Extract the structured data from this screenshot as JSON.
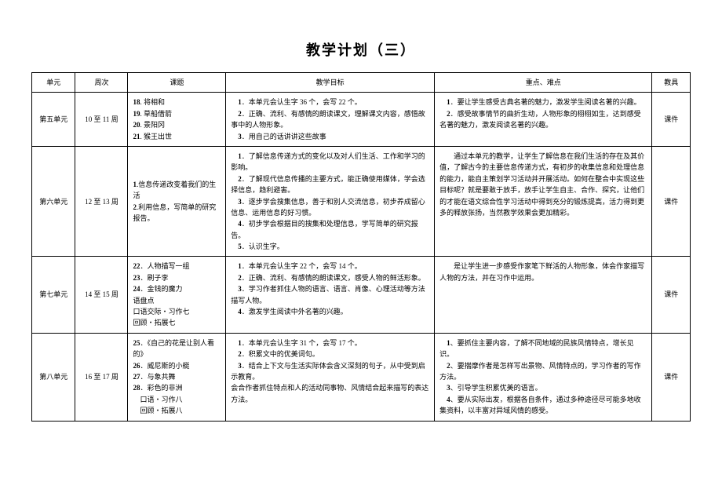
{
  "title": "教学计划（三）",
  "headers": {
    "unit": "单元",
    "week": "周次",
    "topic": "课题",
    "goal": "教学目标",
    "diff": "重点、难点",
    "tool": "教具"
  },
  "rows": [
    {
      "unit": "第五单元",
      "week": "10 至 11 周",
      "topic": "18. 将相和\n19. 草船借箭\n20. 景阳冈\n21. 猴王出世",
      "goal": "　1．本单元会认生字 36 个，会写 22 个。\n　2．正确、流利、有感情的朗读课文，理解课文内容，感悟故事中的人物形象。\n　3．用自己的话讲讲这些故事",
      "diff": "　1．要让学生感受古典名著的魅力，激发学生阅读名著的兴趣。\n　2．感受故事情节的曲折生动，人物形象的栩栩如生，达到感受名著的魅力，激发阅读名著的兴趣。",
      "tool": "课件"
    },
    {
      "unit": "第六单元",
      "week": "12 至 13 周",
      "topic": "1.信息传递改变着我们的生活\n2.利用信息，写简单的研究报告。",
      "goal": "　1．了解信息传递方式的变化以及对人们生活、工作和学习的影响。\n　2．了解现代信息传播的主要方式，能正确使用媒体，学会选择信息，趋利避害。\n　3．逐步学会搜集信息，善于和别人交流信息，初步养成留心信息、运用信息的好习惯。\n　4．初步学会根据目的搜集和处理信息，学写简单的研究报告。\n　5．认识生字。",
      "diff": "　　通过本单元的教学，让学生了解信息在我们生活的存在及其价值，了解古今的主要信息传递方式，有初步的收集信息和处理信息的能力，能自主策划学习活动并开展活动。如何在整合中实现这些目标呢？就是要敢于放手，放手让学生自主、合作、探究，让他们的才能在语文综合性学习活动中得到充分的锻炼提高，活力得到更多的释放张扬，当然教学效果会更加精彩。",
      "tool": "课件"
    },
    {
      "unit": "第七单元",
      "week": "14 至 15 周",
      "topic": "22．人物描写一组\n23．刷子李\n24．金钱的魔力\n语盘点\n口语交际・习作七\n回顾・拓展七",
      "goal": "　1．本单元会认生字 22 个，会写 14 个。\n　2．正确、流利、有感情的朗读课文，感受人物的鲜活形象。\n　3．学习作者抓住人物的语言、语言、肖像、心理活动等方法描写人物。\n　4．激发学生阅读中外名著的兴趣。",
      "diff": "　　是让学生进一步感受作家笔下鲜活的人物形象，体会作家描写人物的方法，并在习作中运用。",
      "tool": "课件"
    },
    {
      "unit": "第八单元",
      "week": "16 至 17 周",
      "topic": "25．《自己的花是让别人看的》\n26．威尼斯的小艇\n27．与象共舞\n28．彩色的非洲\n　口语・习作八\n　回顾・拓展八",
      "goal": "　1．本单元会认生字 31 个，会写 17 个。\n　2．积累文中的优美词句。\n　3．结合上下文与生活实际体会含义深刻的句子，从中受到启示教育。\n会合作者抓住特点和人的活动同事物、风情结合起来描写的表达方法。",
      "diff": "　1、要抓住主要内容，了解不同地域的民族风情特点，增长见识。\n　2、要揣摩作者是怎样写出景物、风情特点的，学习作者的写作方法。\n　3、引导学生积累优美的语言。\n　4、要从实际出发，根据各自条件，通过多种途径尽可能多地收集资料，以丰富对异域风情的感受。",
      "tool": "课件"
    }
  ]
}
